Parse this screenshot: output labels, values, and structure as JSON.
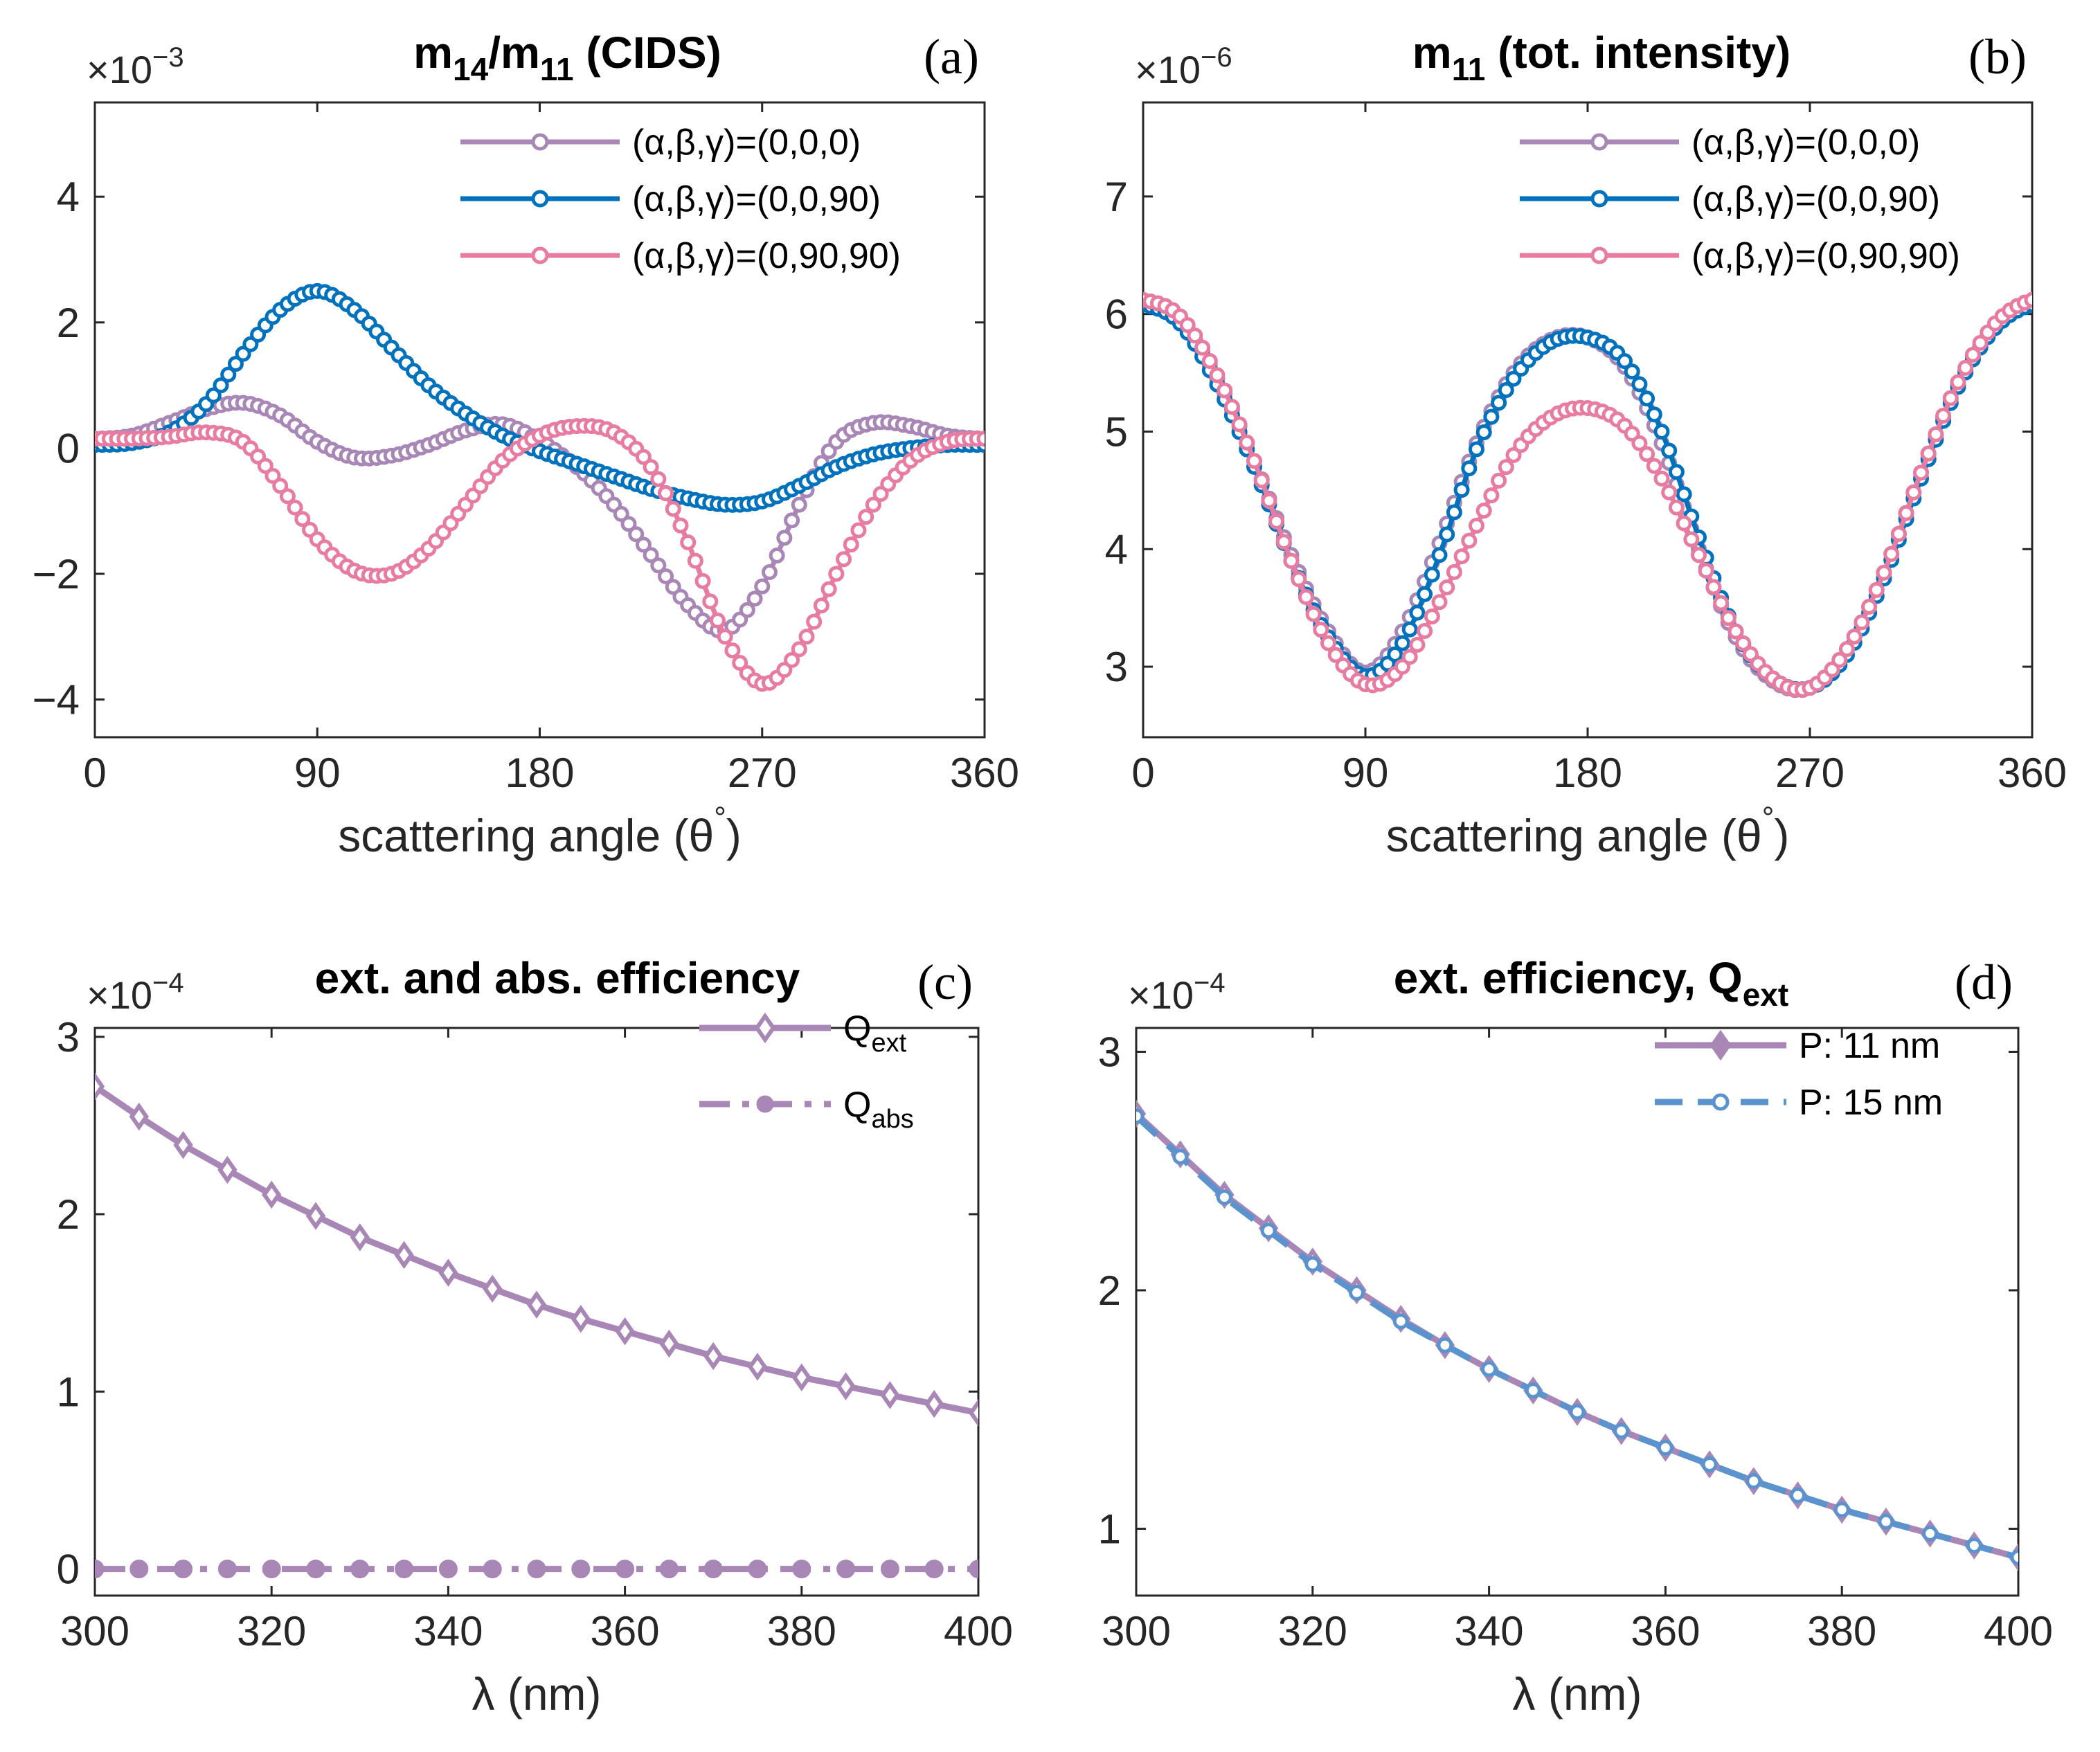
{
  "chart_data": [
    {
      "type": "line",
      "panel": "(a)",
      "title_main": "m",
      "title_sub1": "14",
      "title_mid": "/m",
      "title_sub2": "11",
      "title_tail": " (CIDS)",
      "multiplier_base": "×10",
      "multiplier_exp": "−3",
      "xlabel": "scattering angle (θ",
      "xlabel_deg": "°",
      "xlabel_close": ")",
      "ylabel": "",
      "xlim": [
        0,
        360
      ],
      "ylim": [
        -4.6,
        5.5
      ],
      "xticks": [
        0,
        90,
        180,
        270,
        360
      ],
      "xtick_labels": [
        "0",
        "90",
        "180",
        "270",
        "360"
      ],
      "yticks": [
        -4,
        -2,
        0,
        2,
        4
      ],
      "ytick_labels": [
        "−4",
        "−2",
        "0",
        "2",
        "4"
      ],
      "x": [
        0,
        15,
        30,
        45,
        60,
        75,
        90,
        105,
        120,
        135,
        150,
        165,
        180,
        195,
        210,
        225,
        240,
        255,
        270,
        285,
        300,
        315,
        330,
        345,
        360
      ],
      "series": [
        {
          "name": "(α,β,γ)=(0,0,0)",
          "color": "#A886B6",
          "values": [
            0.15,
            0.2,
            0.4,
            0.62,
            0.72,
            0.52,
            0.1,
            -0.15,
            -0.12,
            0.05,
            0.28,
            0.38,
            0.12,
            -0.3,
            -0.9,
            -1.7,
            -2.5,
            -2.9,
            -2.2,
            -0.9,
            0.1,
            0.4,
            0.35,
            0.2,
            0.15
          ]
        },
        {
          "name": "(α,β,γ)=(0,0,90)",
          "color": "#0072BD",
          "values": [
            0.05,
            0.08,
            0.25,
            0.7,
            1.5,
            2.2,
            2.5,
            2.2,
            1.6,
            1.0,
            0.55,
            0.2,
            -0.05,
            -0.25,
            -0.45,
            -0.65,
            -0.8,
            -0.9,
            -0.85,
            -0.6,
            -0.3,
            -0.1,
            0.0,
            0.05,
            0.05
          ]
        },
        {
          "name": "(α,β,γ)=(0,90,90)",
          "color": "#E87BA0",
          "values": [
            0.15,
            0.15,
            0.18,
            0.25,
            0.1,
            -0.6,
            -1.45,
            -1.95,
            -2.0,
            -1.6,
            -0.9,
            -0.2,
            0.2,
            0.35,
            0.25,
            -0.3,
            -1.5,
            -3.0,
            -3.75,
            -3.2,
            -2.0,
            -0.9,
            -0.2,
            0.1,
            0.15
          ]
        }
      ]
    },
    {
      "type": "line",
      "panel": "(b)",
      "title_main": "m",
      "title_sub1": "11",
      "title_tail": " (tot. intensity)",
      "multiplier_base": "×10",
      "multiplier_exp": "−6",
      "xlabel": "scattering angle (θ",
      "xlabel_deg": "°",
      "xlabel_close": ")",
      "ylabel": "",
      "xlim": [
        0,
        360
      ],
      "ylim": [
        2.4,
        7.8
      ],
      "xticks": [
        0,
        90,
        180,
        270,
        360
      ],
      "xtick_labels": [
        "0",
        "90",
        "180",
        "270",
        "360"
      ],
      "yticks": [
        3,
        4,
        5,
        6,
        7
      ],
      "ytick_labels": [
        "3",
        "4",
        "5",
        "6",
        "7"
      ],
      "x": [
        0,
        15,
        30,
        45,
        60,
        75,
        90,
        105,
        120,
        135,
        150,
        165,
        180,
        195,
        210,
        225,
        240,
        255,
        270,
        285,
        300,
        315,
        330,
        345,
        360
      ],
      "series": [
        {
          "name": "(α,β,γ)=(0,0,0)",
          "color": "#A886B6",
          "values": [
            6.1,
            5.95,
            5.45,
            4.75,
            3.95,
            3.3,
            2.95,
            3.3,
            4.05,
            4.9,
            5.5,
            5.78,
            5.8,
            5.55,
            4.9,
            4.0,
            3.25,
            2.88,
            2.82,
            3.15,
            3.8,
            4.65,
            5.4,
            5.9,
            6.1
          ]
        },
        {
          "name": "(α,β,γ)=(0,0,90)",
          "color": "#0072BD",
          "values": [
            6.08,
            5.92,
            5.4,
            4.7,
            3.9,
            3.25,
            2.92,
            3.2,
            3.95,
            4.85,
            5.45,
            5.76,
            5.8,
            5.6,
            5.0,
            4.1,
            3.3,
            2.9,
            2.82,
            3.1,
            3.75,
            4.6,
            5.38,
            5.88,
            6.08
          ]
        },
        {
          "name": "(α,β,γ)=(0,90,90)",
          "color": "#E87BA0",
          "values": [
            6.12,
            5.98,
            5.48,
            4.75,
            3.9,
            3.2,
            2.85,
            3.0,
            3.55,
            4.2,
            4.8,
            5.12,
            5.2,
            5.05,
            4.6,
            3.95,
            3.3,
            2.9,
            2.82,
            3.15,
            3.8,
            4.65,
            5.42,
            5.92,
            6.12
          ]
        }
      ]
    },
    {
      "type": "line",
      "panel": "(c)",
      "title_main": "ext. and abs. efficiency",
      "multiplier_base": "×10",
      "multiplier_exp": "−4",
      "xlabel": "λ (nm)",
      "ylabel": "",
      "xlim": [
        300,
        400
      ],
      "ylim": [
        -0.15,
        3.05
      ],
      "xticks": [
        300,
        320,
        340,
        360,
        380,
        400
      ],
      "xtick_labels": [
        "300",
        "320",
        "340",
        "360",
        "380",
        "400"
      ],
      "yticks": [
        0,
        1,
        2,
        3
      ],
      "ytick_labels": [
        "0",
        "1",
        "2",
        "3"
      ],
      "x": [
        300,
        305,
        310,
        315,
        320,
        325,
        330,
        335,
        340,
        345,
        350,
        355,
        360,
        365,
        370,
        375,
        380,
        385,
        390,
        395,
        400
      ],
      "series": [
        {
          "name": "Q",
          "sub": "ext",
          "color": "#A886B6",
          "marker": "diamond",
          "dash": "solid",
          "values": [
            2.72,
            2.55,
            2.39,
            2.25,
            2.11,
            1.99,
            1.87,
            1.77,
            1.67,
            1.58,
            1.49,
            1.41,
            1.34,
            1.27,
            1.2,
            1.14,
            1.08,
            1.03,
            0.98,
            0.93,
            0.88
          ]
        },
        {
          "name": "Q",
          "sub": "abs",
          "color": "#A886B6",
          "marker": "dot",
          "dash": "dashdot",
          "values": [
            0,
            0,
            0,
            0,
            0,
            0,
            0,
            0,
            0,
            0,
            0,
            0,
            0,
            0,
            0,
            0,
            0,
            0,
            0,
            0,
            0
          ]
        }
      ]
    },
    {
      "type": "line",
      "panel": "(d)",
      "title_main": "ext. efficiency, Q",
      "title_sub1": "ext",
      "multiplier_base": "×10",
      "multiplier_exp": "−4",
      "xlabel": "λ (nm)",
      "ylabel": "",
      "xlim": [
        300,
        400
      ],
      "ylim": [
        0.72,
        3.1
      ],
      "xticks": [
        300,
        320,
        340,
        360,
        380,
        400
      ],
      "xtick_labels": [
        "300",
        "320",
        "340",
        "360",
        "380",
        "400"
      ],
      "yticks": [
        1,
        2,
        3
      ],
      "ytick_labels": [
        "1",
        "2",
        "3"
      ],
      "x": [
        300,
        305,
        310,
        315,
        320,
        325,
        330,
        335,
        340,
        345,
        350,
        355,
        360,
        365,
        370,
        375,
        380,
        385,
        390,
        395,
        400
      ],
      "series": [
        {
          "name": "P: 11 nm",
          "color": "#A886B6",
          "marker": "diamond",
          "dash": "solid",
          "values": [
            2.74,
            2.57,
            2.4,
            2.26,
            2.12,
            2.0,
            1.88,
            1.77,
            1.67,
            1.58,
            1.49,
            1.41,
            1.34,
            1.27,
            1.2,
            1.14,
            1.08,
            1.03,
            0.98,
            0.93,
            0.88
          ]
        },
        {
          "name": "P: 15 nm",
          "color": "#5B93CF",
          "marker": "dot",
          "dash": "dashed",
          "values": [
            2.73,
            2.56,
            2.39,
            2.25,
            2.11,
            1.99,
            1.87,
            1.77,
            1.67,
            1.58,
            1.49,
            1.41,
            1.34,
            1.27,
            1.2,
            1.14,
            1.08,
            1.03,
            0.98,
            0.93,
            0.88
          ]
        }
      ]
    }
  ]
}
